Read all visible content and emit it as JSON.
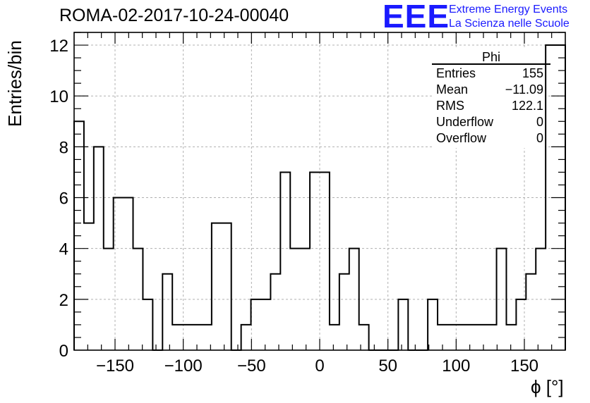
{
  "run_title": "ROMA-02-2017-10-24-00040",
  "logo": {
    "mark": "EEE",
    "line1": "Extreme Energy Events",
    "line2": "La Scienza nelle Scuole",
    "color": "#1a1aff"
  },
  "stats": {
    "title": "Phi",
    "rows": [
      {
        "key": "Entries",
        "value": "155"
      },
      {
        "key": "Mean",
        "value": "−11.09"
      },
      {
        "key": "RMS",
        "value": "122.1"
      },
      {
        "key": "Underflow",
        "value": "0"
      },
      {
        "key": "Overflow",
        "value": "0"
      }
    ]
  },
  "chart_data": {
    "type": "bar",
    "xlabel": "ϕ [°]",
    "ylabel": "Entries/bin",
    "xlim": [
      -180,
      180
    ],
    "ylim": [
      0,
      12.5
    ],
    "bin_width": 7.2,
    "xticks": [
      -150,
      -100,
      -50,
      0,
      50,
      100,
      150
    ],
    "xtick_labels": [
      "−150",
      "−100",
      "−50",
      "0",
      "50",
      "100",
      "150"
    ],
    "yticks": [
      0,
      2,
      4,
      6,
      8,
      10,
      12
    ],
    "ytick_labels": [
      "0",
      "2",
      "4",
      "6",
      "8",
      "10",
      "12"
    ],
    "grid": true,
    "values": [
      9,
      5,
      8,
      4,
      6,
      6,
      4,
      2,
      0,
      3,
      1,
      1,
      1,
      1,
      5,
      5,
      0,
      1,
      2,
      2,
      3,
      7,
      4,
      4,
      7,
      7,
      1,
      3,
      4,
      1,
      0,
      0,
      0,
      2,
      0,
      0,
      2,
      1,
      1,
      1,
      1,
      1,
      1,
      4,
      1,
      2,
      3,
      4,
      12,
      12
    ],
    "line_color": "#000000"
  }
}
